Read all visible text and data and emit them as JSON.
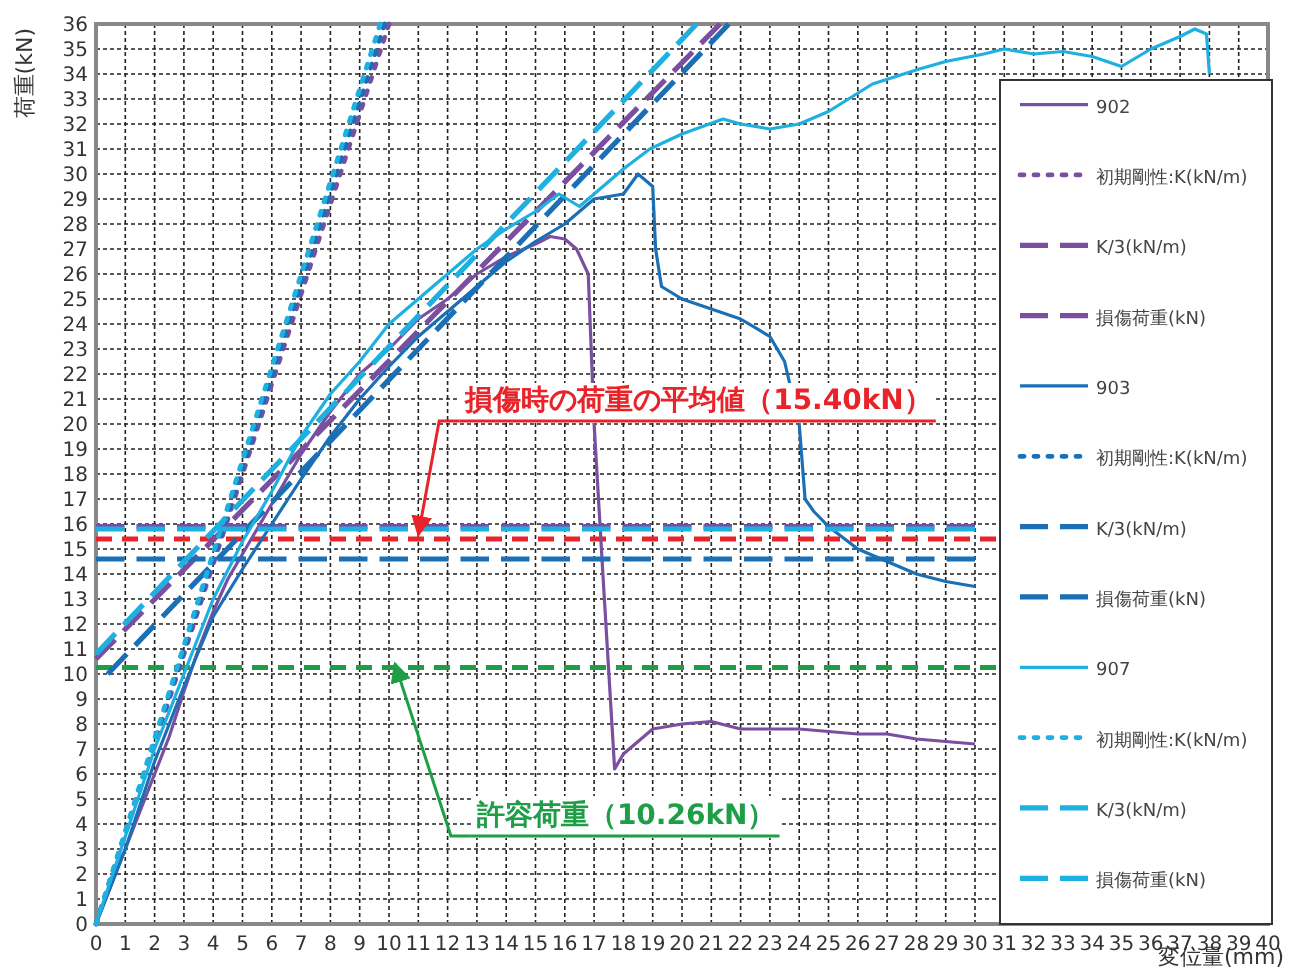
{
  "chart_data": {
    "type": "line",
    "xlabel": "変位量(mm)",
    "ylabel": "荷重(kN)",
    "xlim": [
      0,
      40
    ],
    "ylim": [
      0,
      36
    ],
    "xticks": [
      0,
      1,
      2,
      3,
      4,
      5,
      6,
      7,
      8,
      9,
      10,
      11,
      12,
      13,
      14,
      15,
      16,
      17,
      18,
      19,
      20,
      21,
      22,
      23,
      24,
      25,
      26,
      27,
      28,
      29,
      30,
      31,
      32,
      33,
      34,
      35,
      36,
      37,
      38,
      39,
      40
    ],
    "yticks": [
      0,
      1,
      2,
      3,
      4,
      5,
      6,
      7,
      8,
      9,
      10,
      11,
      12,
      13,
      14,
      15,
      16,
      17,
      18,
      19,
      20,
      21,
      22,
      23,
      24,
      25,
      26,
      27,
      28,
      29,
      30,
      31,
      32,
      33,
      34,
      35,
      36
    ],
    "grid": true,
    "legend": "right",
    "series": [
      {
        "name": "902",
        "color": "#7b4fa0",
        "line_style": "solid",
        "x": [
          0,
          0.5,
          1,
          1.5,
          2,
          2.5,
          3,
          3.5,
          4,
          4.5,
          5,
          5.5,
          6,
          7,
          8,
          9,
          10,
          11,
          12,
          13,
          14,
          15,
          15.5,
          16,
          16.4,
          16.8,
          17,
          17.3,
          17.7,
          18,
          19,
          20,
          21,
          22,
          23,
          24,
          25,
          26,
          27,
          28,
          29,
          30
        ],
        "values": [
          0,
          1.5,
          3,
          4.5,
          6,
          7.5,
          9.3,
          11,
          12.5,
          13.8,
          14.8,
          15.8,
          16.8,
          18.8,
          20.5,
          22,
          23,
          24.2,
          25,
          26,
          26.7,
          27.2,
          27.5,
          27.4,
          27,
          26,
          20,
          14,
          6.2,
          6.8,
          7.8,
          8,
          8.1,
          7.8,
          7.8,
          7.8,
          7.7,
          7.6,
          7.6,
          7.4,
          7.3,
          7.2
        ]
      },
      {
        "name": "初期剛性:K(kN/m)",
        "color": "#7b4fa0",
        "line_style": "dotted",
        "x": [
          0,
          10
        ],
        "values": [
          0,
          36
        ]
      },
      {
        "name": "K/3(kN/m)",
        "color": "#7b4fa0",
        "line_style": "dashed",
        "x": [
          0,
          21.3
        ],
        "values": [
          10.6,
          36
        ]
      },
      {
        "name": "損傷荷重(kN)",
        "color": "#7b4fa0",
        "line_style": "dashed",
        "x": [
          0,
          30
        ],
        "values": [
          15.9,
          15.9
        ]
      },
      {
        "name": "903",
        "color": "#1a6fb5",
        "line_style": "solid",
        "x": [
          0,
          1,
          2,
          3,
          4,
          5,
          6,
          7,
          8,
          9,
          10,
          11,
          12,
          13,
          14,
          15,
          16,
          17,
          18,
          18.5,
          19,
          19.1,
          19.3,
          20,
          21,
          22,
          23,
          23.5,
          24,
          24.2,
          24.5,
          25,
          26,
          27,
          28,
          29,
          30
        ],
        "values": [
          0,
          3,
          6.5,
          9.5,
          12.3,
          14.2,
          16,
          17.8,
          19.5,
          21,
          22.3,
          23.5,
          24.5,
          25.5,
          26.5,
          27.3,
          28,
          29,
          29.2,
          30,
          29.5,
          27,
          25.5,
          25,
          24.6,
          24.2,
          23.5,
          22.5,
          20,
          17,
          16.5,
          15.9,
          15,
          14.5,
          14,
          13.7,
          13.5
        ]
      },
      {
        "name": "初期剛性:K(kN/m)",
        "color": "#1a6fb5",
        "line_style": "dotted",
        "x": [
          0,
          9.85
        ],
        "values": [
          0,
          36
        ]
      },
      {
        "name": "K/3(kN/m)",
        "color": "#1a6fb5",
        "line_style": "dashed",
        "x": [
          0.4,
          21.6
        ],
        "values": [
          10,
          36
        ]
      },
      {
        "name": "損傷荷重(kN)",
        "color": "#1a6fb5",
        "line_style": "dashed",
        "x": [
          0,
          30
        ],
        "values": [
          14.6,
          14.6
        ]
      },
      {
        "name": "907",
        "color": "#1eb0e0",
        "line_style": "solid",
        "x": [
          0,
          1,
          2,
          3,
          4,
          5,
          6,
          7,
          8,
          9,
          10,
          11,
          12,
          13,
          14,
          15,
          15.8,
          16.5,
          17,
          18,
          18.9,
          20,
          21.4,
          22,
          23,
          24,
          25,
          26.5,
          28.1,
          29,
          30.3,
          31,
          32,
          33,
          34,
          35,
          36,
          37,
          37.5,
          37.9,
          38
        ],
        "values": [
          0,
          3.5,
          7,
          10,
          13,
          15.3,
          17.3,
          19.5,
          21.2,
          22.5,
          24,
          25,
          26,
          27,
          27.8,
          28.5,
          29.2,
          28.7,
          29.2,
          30.2,
          31,
          31.6,
          32.2,
          32,
          31.8,
          32,
          32.5,
          33.6,
          34.2,
          34.5,
          34.8,
          35,
          34.8,
          34.9,
          34.7,
          34.3,
          35,
          35.5,
          35.8,
          35.6,
          34
        ]
      },
      {
        "name": "初期剛性:K(kN/m)",
        "color": "#1eb0e0",
        "line_style": "dotted",
        "x": [
          0,
          9.7
        ],
        "values": [
          0,
          36
        ]
      },
      {
        "name": "K/3(kN/m)",
        "color": "#1eb0e0",
        "line_style": "dashed",
        "x": [
          0,
          20.5
        ],
        "values": [
          10.8,
          36
        ]
      },
      {
        "name": "損傷荷重(kN)",
        "color": "#1eb0e0",
        "line_style": "dashed",
        "x": [
          0,
          30
        ],
        "values": [
          15.8,
          15.8
        ]
      }
    ],
    "ref_lines": [
      {
        "axis": "y",
        "value": 15.4,
        "color": "#e8242a",
        "line_style": "dashed"
      },
      {
        "axis": "y",
        "value": 10.26,
        "color": "#1f9e48",
        "line_style": "dashed"
      }
    ],
    "annotations": [
      {
        "text": "損傷時の荷重の平均値（15.40kN）",
        "x": 11,
        "y": 15.4
      },
      {
        "text": "許容荷重（10.26kN）",
        "x": 10.2,
        "y": 10.26
      }
    ]
  }
}
